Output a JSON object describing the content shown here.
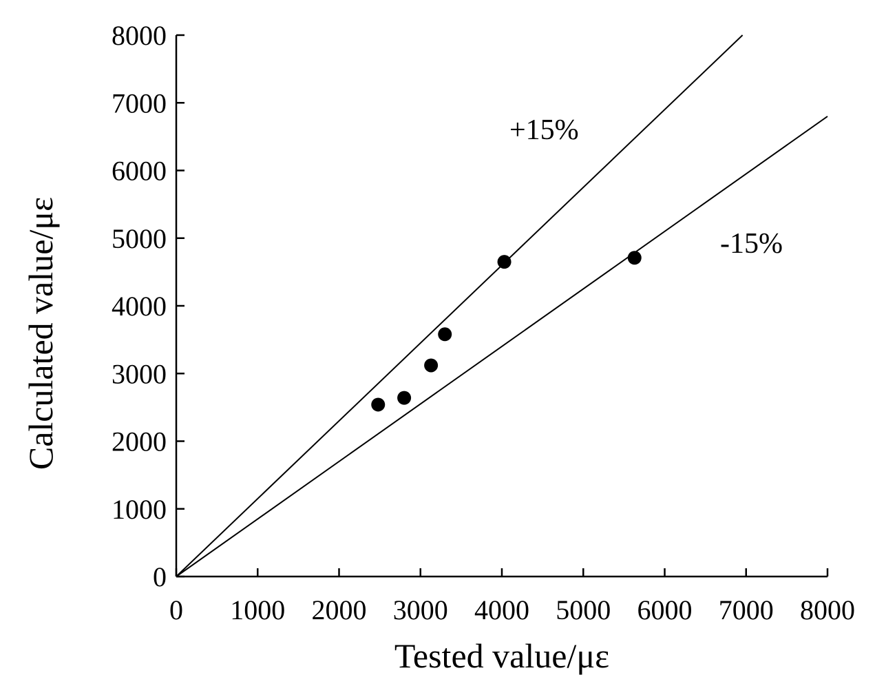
{
  "chart_data": {
    "type": "scatter",
    "xlabel": "Tested value/με",
    "ylabel": "Calculated value/με",
    "xlim": [
      0,
      8000
    ],
    "ylim": [
      0,
      8000
    ],
    "x_ticks": [
      "0",
      "1000",
      "2000",
      "3000",
      "4000",
      "5000",
      "6000",
      "7000",
      "8000"
    ],
    "y_ticks": [
      "0",
      "1000",
      "2000",
      "3000",
      "4000",
      "5000",
      "6000",
      "7000",
      "8000"
    ],
    "grid": false,
    "series": [
      {
        "points": [
          {
            "x": 2480,
            "y": 2540
          },
          {
            "x": 2800,
            "y": 2640
          },
          {
            "x": 3130,
            "y": 3120
          },
          {
            "x": 3300,
            "y": 3580
          },
          {
            "x": 4030,
            "y": 4650
          },
          {
            "x": 5630,
            "y": 4710
          }
        ]
      }
    ],
    "reference_lines": [
      {
        "label": "+15%",
        "slope": 1.15
      },
      {
        "label": "-15%",
        "slope": 0.85
      }
    ],
    "annotations": [
      {
        "text": "+15%"
      },
      {
        "text": "-15%"
      }
    ]
  }
}
